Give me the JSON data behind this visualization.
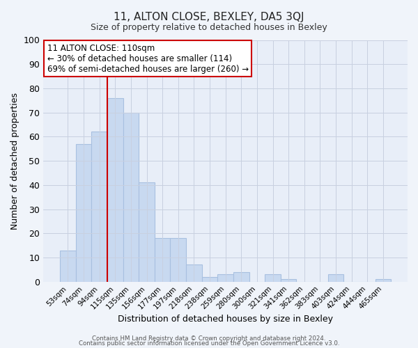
{
  "title": "11, ALTON CLOSE, BEXLEY, DA5 3QJ",
  "subtitle": "Size of property relative to detached houses in Bexley",
  "xlabel": "Distribution of detached houses by size in Bexley",
  "ylabel": "Number of detached properties",
  "bar_labels": [
    "53sqm",
    "74sqm",
    "94sqm",
    "115sqm",
    "135sqm",
    "156sqm",
    "177sqm",
    "197sqm",
    "218sqm",
    "238sqm",
    "259sqm",
    "280sqm",
    "300sqm",
    "321sqm",
    "341sqm",
    "362sqm",
    "383sqm",
    "403sqm",
    "424sqm",
    "444sqm",
    "465sqm"
  ],
  "bar_values": [
    13,
    57,
    62,
    76,
    70,
    41,
    18,
    18,
    7,
    2,
    3,
    4,
    0,
    3,
    1,
    0,
    0,
    3,
    0,
    0,
    1
  ],
  "bar_color": "#c8d9f0",
  "bar_edge_color": "#a8c0e0",
  "vline_color": "#cc0000",
  "annotation_title": "11 ALTON CLOSE: 110sqm",
  "annotation_line1": "← 30% of detached houses are smaller (114)",
  "annotation_line2": "69% of semi-detached houses are larger (260) →",
  "annotation_box_color": "#ffffff",
  "annotation_box_edge": "#cc0000",
  "ylim": [
    0,
    100
  ],
  "yticks": [
    0,
    10,
    20,
    30,
    40,
    50,
    60,
    70,
    80,
    90,
    100
  ],
  "footer1": "Contains HM Land Registry data © Crown copyright and database right 2024.",
  "footer2": "Contains public sector information licensed under the Open Government Licence v3.0.",
  "bg_color": "#f0f4fa",
  "plot_bg_color": "#e8eef8",
  "grid_color": "#c8d0e0"
}
